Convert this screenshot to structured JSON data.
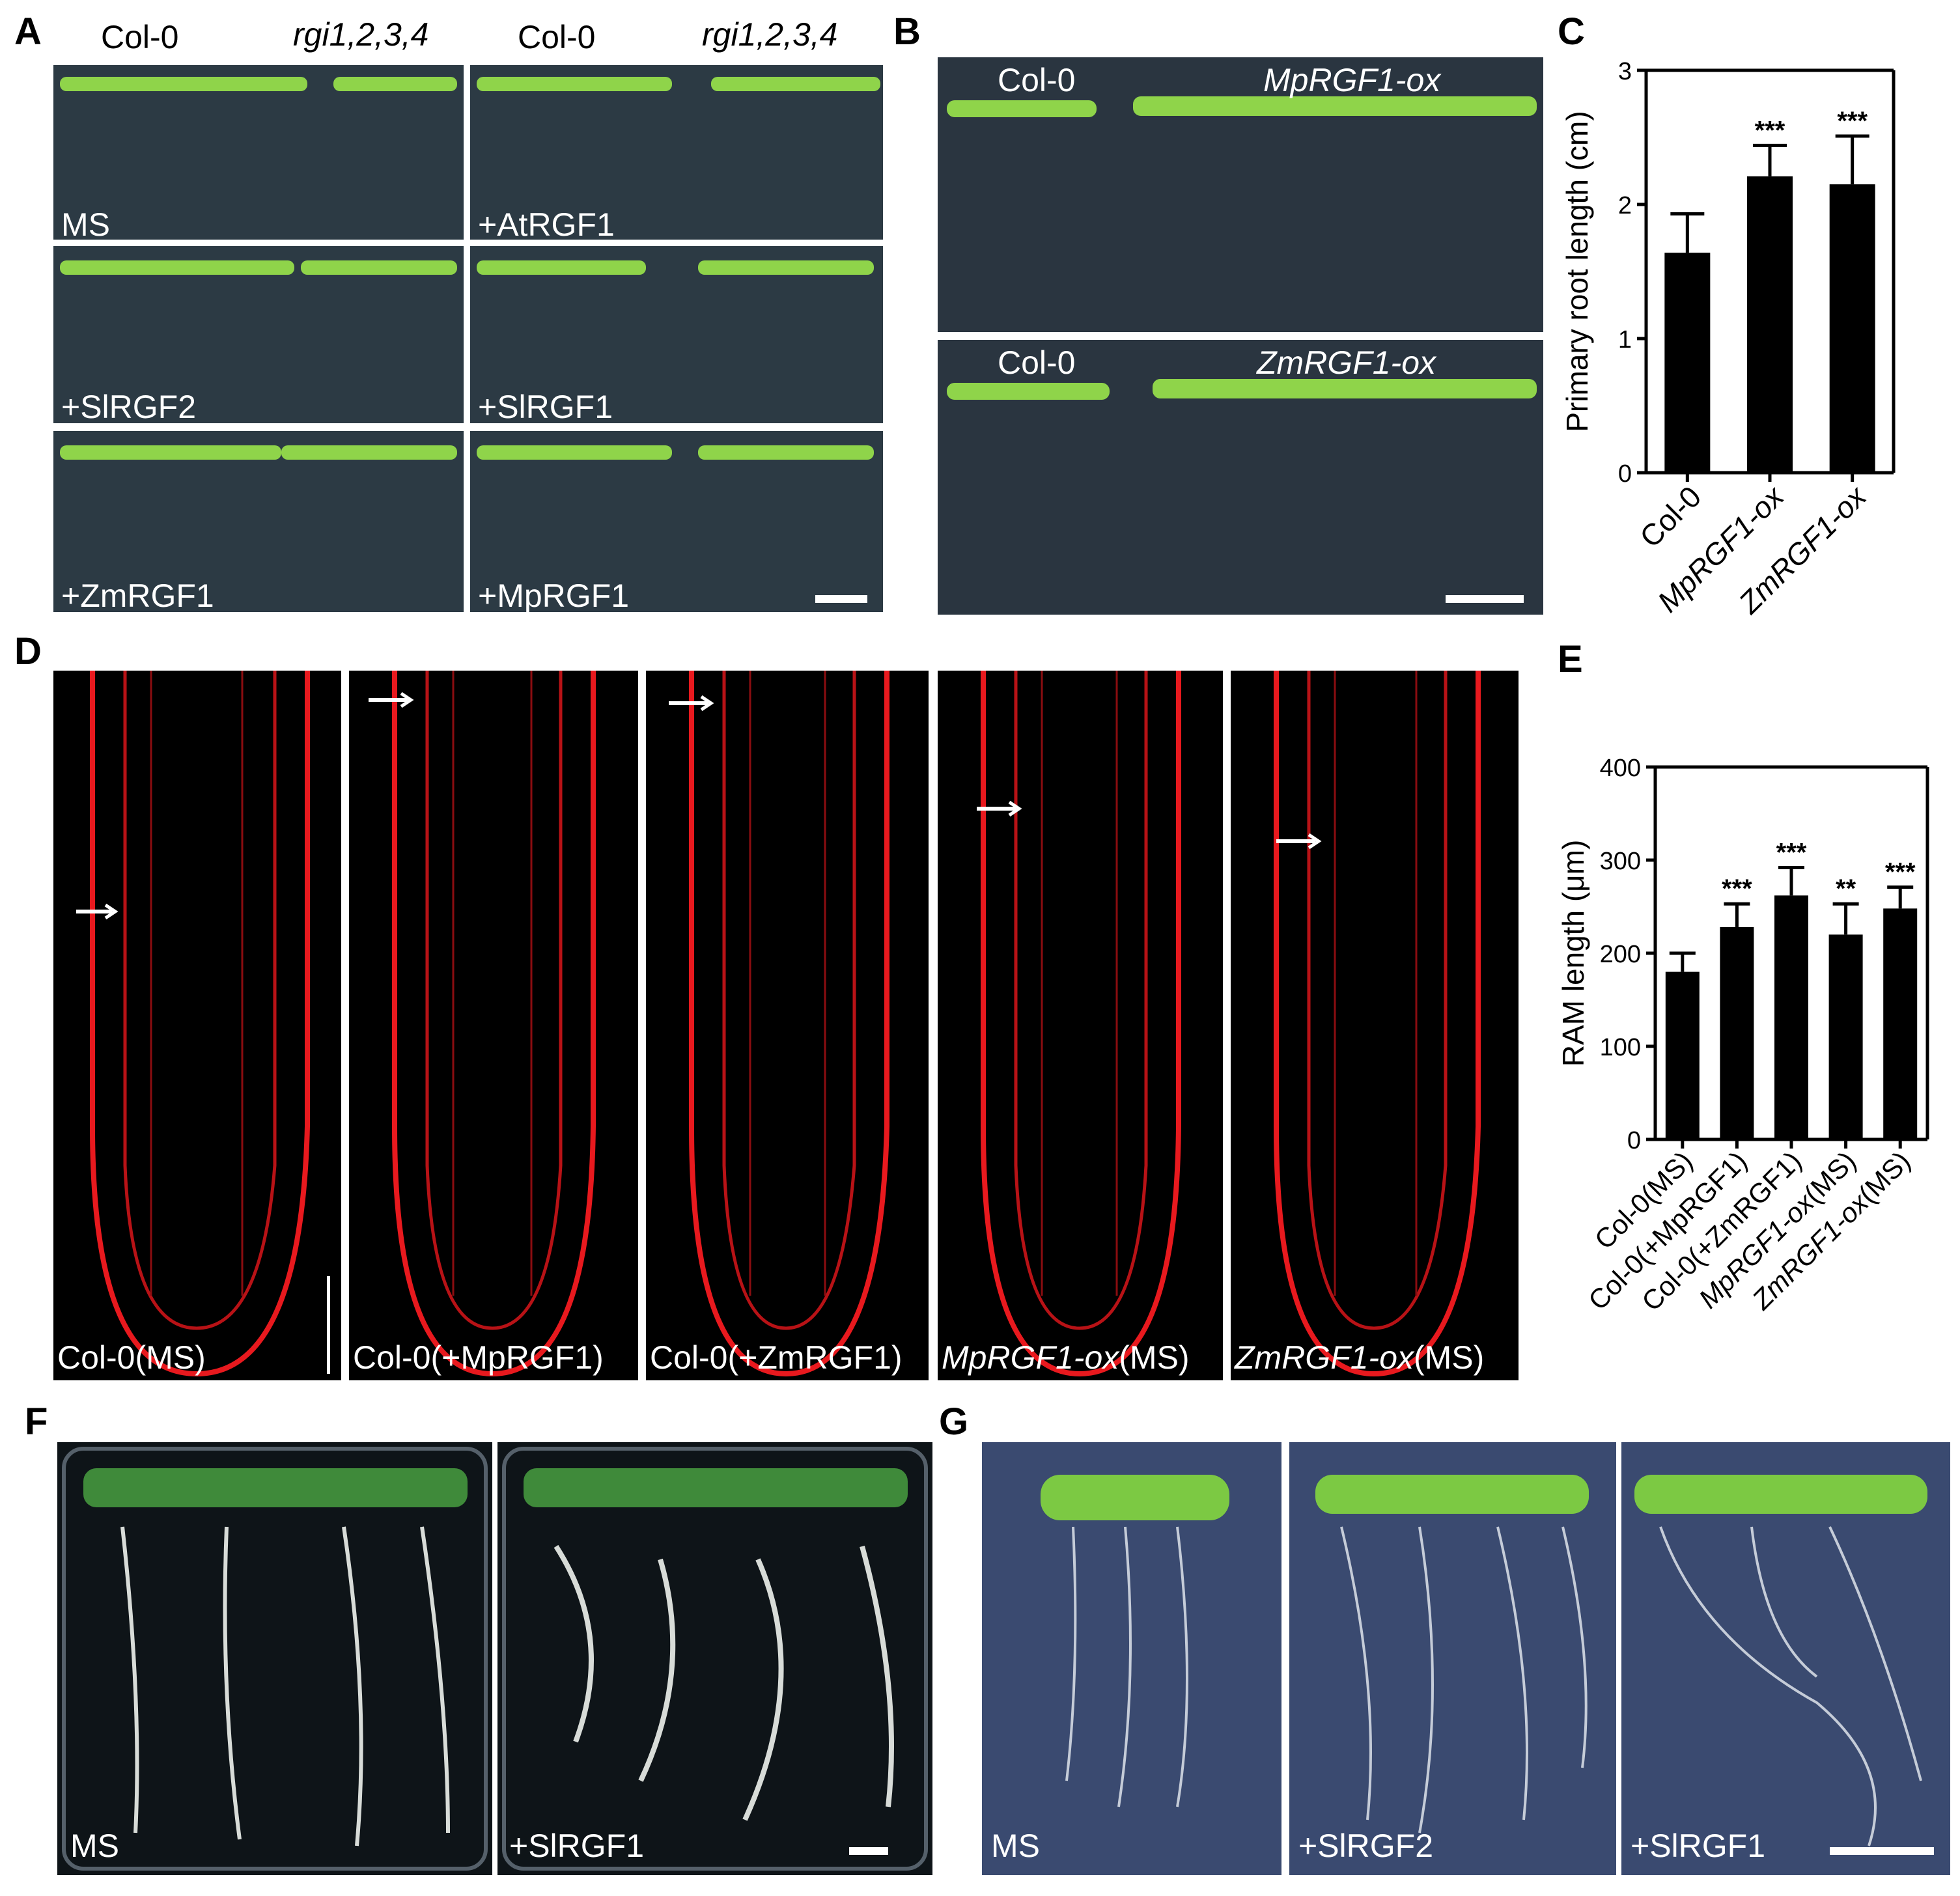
{
  "panels": {
    "A": {
      "label": "A",
      "headers": [
        {
          "text": "Col-0",
          "italic": false
        },
        {
          "text": "rgi1,2,3,4",
          "italic": true
        },
        {
          "text": "Col-0",
          "italic": false
        },
        {
          "text": "rgi1,2,3,4",
          "italic": true
        }
      ],
      "cells": [
        "MS",
        "+AtRGF1",
        "+SlRGF2",
        "+SlRGF1",
        "+ZmRGF1",
        "+MpRGF1"
      ]
    },
    "B": {
      "label": "B",
      "top": {
        "left": "Col-0",
        "right": "MpRGF1-ox"
      },
      "bottom": {
        "left": "Col-0",
        "right": "ZmRGF1-ox"
      }
    },
    "D": {
      "label": "D",
      "images": [
        {
          "prefix": "Col-0",
          "suffix": "(MS)",
          "italic_prefix": false
        },
        {
          "prefix": "Col-0",
          "suffix": "(+MpRGF1)",
          "italic_prefix": false
        },
        {
          "prefix": "Col-0",
          "suffix": "(+ZmRGF1)",
          "italic_prefix": false
        },
        {
          "prefix": "MpRGF1-ox",
          "suffix": "(MS)",
          "italic_prefix": true
        },
        {
          "prefix": "ZmRGF1-ox",
          "suffix": "(MS)",
          "italic_prefix": true
        }
      ]
    },
    "F": {
      "label": "F",
      "cells": [
        "MS",
        "+SlRGF1"
      ]
    },
    "G": {
      "label": "G",
      "cells": [
        "MS",
        "+SlRGF2",
        "+SlRGF1"
      ]
    }
  },
  "chart_data": [
    {
      "panel": "C",
      "type": "bar",
      "ylabel": "Primary root length (cm)",
      "categories": [
        "Col-0",
        "MpRGF1-ox",
        "ZmRGF1-ox"
      ],
      "italic_categories": [
        false,
        true,
        true
      ],
      "values": [
        1.64,
        2.21,
        2.15
      ],
      "errors": [
        0.29,
        0.23,
        0.36
      ],
      "significance": [
        "",
        "***",
        "***"
      ],
      "ylim": [
        0,
        3
      ],
      "yticks": [
        "0",
        "1",
        "2",
        "3"
      ],
      "bar_color": "#000000"
    },
    {
      "panel": "E",
      "type": "bar",
      "ylabel": "RAM length (μm)",
      "categories": [
        "Col-0(MS)",
        "Col-0(+MpRGF1)",
        "Col-0(+ZmRGF1)",
        "MpRGF1-ox(MS)",
        "ZmRGF1-ox(MS)"
      ],
      "values": [
        180,
        228,
        262,
        220,
        248
      ],
      "errors": [
        20,
        25,
        30,
        33,
        23
      ],
      "significance": [
        "",
        "***",
        "***",
        "**",
        "***"
      ],
      "ylim": [
        0,
        400
      ],
      "yticks": [
        "0",
        "100",
        "200",
        "300",
        "400"
      ],
      "bar_color": "#000000"
    }
  ]
}
